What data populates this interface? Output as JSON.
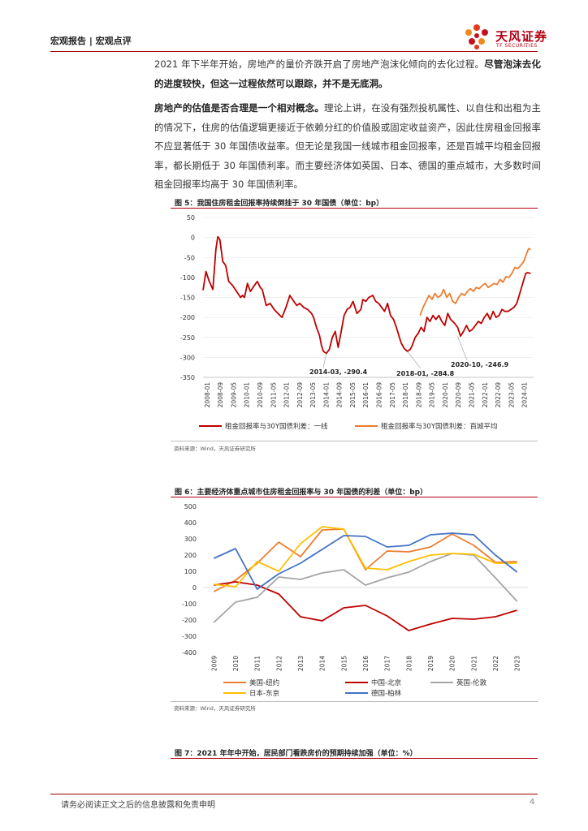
{
  "header": {
    "left": "宏观报告 | 宏观点评",
    "logo_text": "天风证券",
    "logo_sub": "TF SECURITIES"
  },
  "paragraphs": {
    "p1_normal": "2021 年下半年开始，房地产的量价齐跌开启了房地产泡沫化倾向的去化过程。",
    "p1_bold": "尽管泡沫去化的进度较快，但这一过程依然可以跟踪，并不是无底洞。",
    "p2_bold": "房地产的估值是否合理是一个相对概念。",
    "p2_normal": "理论上讲，在没有强烈投机属性、以自住和出租为主的情况下，住房的估值逻辑更接近于依赖分红的价值股或固定收益资产，因此住房租金回报率不应显著低于 30 年国债收益率。但无论是我国一线城市租金回报率，还是百城平均租金回报率，都长期低于 30 年国债利率。而主要经济体如英国、日本、德国的重点城市，大多数时间租金回报率均高于 30 年国债利率。"
  },
  "figure5": {
    "title": "图 5：我国住房租金回报率持续倒挂于 30 年国债（单位：bp）",
    "source": "资料来源：Wind，天风证券研究所"
  },
  "figure6": {
    "title": "图 6：主要经济体重点城市住房租金回报率与 30 年国债的利差（单位：bp）",
    "source": "资料来源：Wind，天风证券研究所"
  },
  "figure7": {
    "title": "图 7：2021 年年中开始，居民部门看跌房价的预期持续加强（单位：%）"
  },
  "footer": {
    "disclaimer": "请务必阅读正文之后的信息披露和免责申明",
    "page": "4"
  },
  "chart_data": [
    {
      "type": "line",
      "title": "图 5：我国住房租金回报率持续倒挂于 30 年国债（单位：bp）",
      "ylim": [
        -350,
        50
      ],
      "yticks": [
        50,
        0,
        -50,
        -100,
        -150,
        -200,
        -250,
        -300,
        -350
      ],
      "x_range": [
        2008.0,
        2024.75
      ],
      "x_tick_labels": [
        "2008-01",
        "2008-09",
        "2009-05",
        "2010-01",
        "2010-09",
        "2011-05",
        "2012-01",
        "2012-09",
        "2013-05",
        "2014-01",
        "2014-09",
        "2015-05",
        "2016-01",
        "2016-09",
        "2017-05",
        "2018-01",
        "2018-09",
        "2019-05",
        "2020-01",
        "2020-09",
        "2021-05",
        "2022-01",
        "2022-09",
        "2023-05",
        "2024-01"
      ],
      "series": [
        {
          "name": "租金回报率与30Y国债利差：一线",
          "color": "#c00000",
          "x": [
            2008.0,
            2008.15,
            2008.3,
            2008.5,
            2008.65,
            2008.75,
            2008.85,
            2009.0,
            2009.15,
            2009.3,
            2009.5,
            2009.7,
            2009.9,
            2010.0,
            2010.1,
            2010.25,
            2010.4,
            2010.6,
            2010.75,
            2010.9,
            2011.0,
            2011.2,
            2011.4,
            2011.6,
            2011.8,
            2012.0,
            2012.2,
            2012.4,
            2012.6,
            2012.75,
            2012.9,
            2013.1,
            2013.3,
            2013.5,
            2013.6,
            2013.75,
            2013.9,
            2014.0,
            2014.1,
            2014.25,
            2014.4,
            2014.55,
            2014.7,
            2014.85,
            2015.0,
            2015.15,
            2015.3,
            2015.45,
            2015.6,
            2015.8,
            2016.0,
            2016.1,
            2016.25,
            2016.4,
            2016.6,
            2016.75,
            2016.9,
            2017.05,
            2017.2,
            2017.35,
            2017.5,
            2017.65,
            2017.8,
            2017.95,
            2018.05,
            2018.2,
            2018.35,
            2018.5,
            2018.6,
            2018.75,
            2018.9,
            2019.05,
            2019.2,
            2019.35,
            2019.5,
            2019.65,
            2019.8,
            2019.95,
            2020.1,
            2020.25,
            2020.4,
            2020.55,
            2020.75,
            2020.9,
            2021.05,
            2021.2,
            2021.35,
            2021.5,
            2021.65,
            2021.8,
            2021.95,
            2022.1,
            2022.25,
            2022.4,
            2022.55,
            2022.7,
            2022.85,
            2023.0,
            2023.15,
            2023.3,
            2023.45,
            2023.6,
            2023.75,
            2023.9,
            2024.05,
            2024.2,
            2024.35,
            2024.45,
            2024.6
          ],
          "values": [
            -132,
            -85,
            -108,
            -130,
            -30,
            2,
            -5,
            -60,
            -70,
            -110,
            -120,
            -135,
            -150,
            -145,
            -150,
            -115,
            -135,
            -120,
            -110,
            -125,
            -130,
            -170,
            -165,
            -180,
            -190,
            -200,
            -175,
            -145,
            -160,
            -170,
            -165,
            -175,
            -180,
            -190,
            -200,
            -225,
            -245,
            -270,
            -285,
            -290,
            -280,
            -250,
            -235,
            -275,
            -235,
            -195,
            -180,
            -175,
            -160,
            -190,
            -180,
            -155,
            -160,
            -150,
            -145,
            -160,
            -165,
            -175,
            -185,
            -165,
            -195,
            -205,
            -225,
            -250,
            -265,
            -278,
            -284.8,
            -280,
            -270,
            -250,
            -240,
            -225,
            -235,
            -200,
            -210,
            -195,
            -205,
            -195,
            -210,
            -220,
            -190,
            -205,
            -215,
            -225,
            -246.9,
            -235,
            -220,
            -235,
            -230,
            -220,
            -210,
            -215,
            -200,
            -190,
            -205,
            -185,
            -200,
            -195,
            -180,
            -185,
            -185,
            -180,
            -175,
            -165,
            -140,
            -115,
            -90,
            -88,
            -90
          ]
        },
        {
          "name": "租金回报率与30Y国债利差：百城平均",
          "color": "#ed7d31",
          "x": [
            2019.0,
            2019.15,
            2019.3,
            2019.45,
            2019.6,
            2019.75,
            2019.9,
            2020.05,
            2020.2,
            2020.35,
            2020.5,
            2020.65,
            2020.8,
            2020.95,
            2021.1,
            2021.25,
            2021.4,
            2021.55,
            2021.7,
            2021.85,
            2022.0,
            2022.15,
            2022.3,
            2022.45,
            2022.6,
            2022.75,
            2022.9,
            2023.05,
            2023.2,
            2023.35,
            2023.5,
            2023.65,
            2023.8,
            2023.95,
            2024.1,
            2024.25,
            2024.4,
            2024.5,
            2024.6
          ],
          "values": [
            -195,
            -175,
            -160,
            -145,
            -155,
            -140,
            -150,
            -145,
            -130,
            -150,
            -140,
            -160,
            -165,
            -150,
            -140,
            -145,
            -135,
            -128,
            -135,
            -125,
            -128,
            -120,
            -115,
            -125,
            -120,
            -115,
            -118,
            -105,
            -112,
            -98,
            -100,
            -90,
            -75,
            -78,
            -70,
            -60,
            -40,
            -28,
            -30
          ]
        }
      ],
      "annotations": [
        "2014-03, -290.4",
        "2018-01, -284.8",
        "2020-10, -246.9"
      ]
    },
    {
      "type": "line",
      "title": "图 6：主要经济体重点城市住房租金回报率与 30 年国债的利差（单位：bp）",
      "categories": [
        "2009",
        "2010",
        "2011",
        "2012",
        "2013",
        "2014",
        "2015",
        "2016",
        "2017",
        "2018",
        "2019",
        "2020",
        "2021",
        "2022",
        "2023"
      ],
      "ylim": [
        -400,
        500
      ],
      "yticks": [
        500,
        400,
        300,
        200,
        100,
        0,
        -100,
        -200,
        -300,
        -400
      ],
      "series": [
        {
          "name": "美国-纽约",
          "color": "#ed7d31",
          "values": [
            -25,
            45,
            150,
            280,
            190,
            355,
            360,
            110,
            225,
            220,
            250,
            330,
            260,
            155,
            160
          ]
        },
        {
          "name": "中国-北京",
          "color": "#c00000",
          "values": [
            15,
            35,
            15,
            -40,
            -180,
            -205,
            -125,
            -110,
            -175,
            -265,
            -225,
            -190,
            -195,
            -180,
            -140
          ]
        },
        {
          "name": "英国-伦敦",
          "color": "#a5a5a5",
          "values": [
            -215,
            -90,
            -60,
            65,
            50,
            90,
            110,
            15,
            60,
            95,
            160,
            210,
            200,
            60,
            -85
          ]
        },
        {
          "name": "日本-东京",
          "color": "#ffc000",
          "values": [
            20,
            5,
            160,
            100,
            270,
            375,
            360,
            120,
            110,
            160,
            200,
            210,
            205,
            150,
            150
          ]
        },
        {
          "name": "德国-柏林",
          "color": "#4472c4",
          "values": [
            180,
            240,
            -10,
            85,
            150,
            235,
            320,
            315,
            250,
            260,
            325,
            335,
            325,
            200,
            95
          ]
        }
      ]
    }
  ]
}
